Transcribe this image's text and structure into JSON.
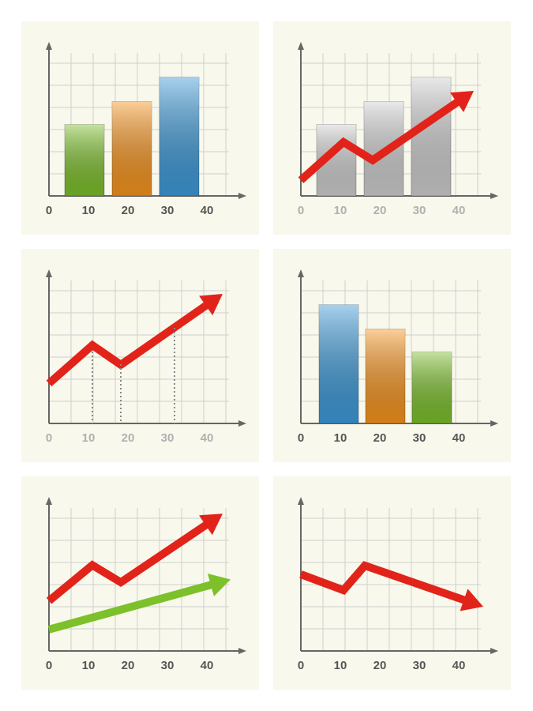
{
  "chart_data": [
    {
      "type": "bar",
      "xlim": [
        0,
        40
      ],
      "ylim": [
        0,
        100
      ],
      "xticks": [
        0,
        10,
        20,
        30,
        40
      ],
      "tick_color": "#555555",
      "bars": {
        "x": [
          9,
          21,
          33
        ],
        "values": [
          50,
          66,
          83
        ],
        "colors": [
          "#7cc02a",
          "#f7941d",
          "#3d9ad9"
        ]
      }
    },
    {
      "type": "combo",
      "xlim": [
        0,
        40
      ],
      "ylim": [
        0,
        100
      ],
      "xticks": [
        0,
        10,
        20,
        30,
        40
      ],
      "tick_color": "#b0b0b0",
      "bars": {
        "x": [
          9,
          21,
          33
        ],
        "values": [
          50,
          66,
          83
        ],
        "colors": [
          "#cfcfcf",
          "#cfcfcf",
          "#cfcfcf"
        ]
      },
      "series": [
        {
          "color": "#e2231a",
          "x": [
            0,
            10.8,
            18.2,
            43.8
          ],
          "values": [
            11,
            37.6,
            25,
            73.5
          ]
        }
      ]
    },
    {
      "type": "line",
      "xlim": [
        0,
        40
      ],
      "ylim": [
        0,
        100
      ],
      "xticks": [
        0,
        10,
        20,
        30,
        40
      ],
      "tick_color": "#b0b0b0",
      "series": [
        {
          "color": "#e2231a",
          "x": [
            0,
            11,
            18.2,
            44
          ],
          "values": [
            28,
            54.7,
            41,
            90.6
          ]
        }
      ]
    },
    {
      "type": "bar",
      "xlim": [
        0,
        40
      ],
      "ylim": [
        0,
        100
      ],
      "xticks": [
        0,
        10,
        20,
        30,
        40
      ],
      "tick_color": "#555555",
      "bars": {
        "x": [
          9.6,
          21.4,
          33.2
        ],
        "values": [
          83,
          66,
          50
        ],
        "colors": [
          "#3d9ad9",
          "#f7941d",
          "#7cc02a"
        ]
      }
    },
    {
      "type": "line",
      "xlim": [
        0,
        40
      ],
      "ylim": [
        0,
        100
      ],
      "xticks": [
        0,
        10,
        20,
        30,
        40
      ],
      "tick_color": "#555555",
      "series": [
        {
          "color": "#e2231a",
          "x": [
            0,
            11,
            18.2,
            44
          ],
          "values": [
            35,
            60,
            48,
            96
          ]
        },
        {
          "color": "#7cc02a",
          "x": [
            0,
            46
          ],
          "values": [
            15,
            50
          ]
        }
      ]
    },
    {
      "type": "line",
      "xlim": [
        0,
        40
      ],
      "ylim": [
        0,
        100
      ],
      "xticks": [
        0,
        10,
        20,
        30,
        40
      ],
      "tick_color": "#555555",
      "series": [
        {
          "color": "#e2231a",
          "x": [
            0,
            10.8,
            16.2,
            46.2
          ],
          "values": [
            53.6,
            42.5,
            59.7,
            31
          ]
        }
      ]
    }
  ]
}
